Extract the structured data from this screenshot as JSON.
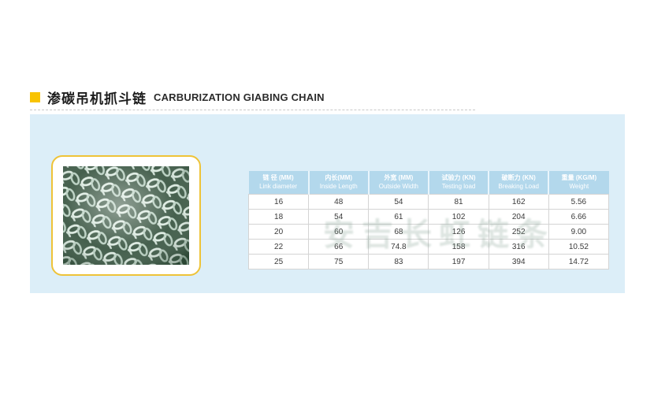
{
  "page": {
    "title_zh": "渗碳吊机抓斗链",
    "title_en": "CARBURIZATION GIABING CHAIN"
  },
  "watermark": "安吉长虹链条",
  "colors": {
    "accent_yellow": "#f8c301",
    "band_blue": "#dceef8",
    "table_header_blue": "#b3d8ec",
    "card_border_yellow": "#eec338"
  },
  "photo": {
    "alt": "pile of carburized steel chain links"
  },
  "table": {
    "columns": [
      {
        "zh": "链 径 (MM)",
        "en": "Link diameter"
      },
      {
        "zh": "内长(MM)",
        "en": "Inside Length"
      },
      {
        "zh": "外宽 (MM)",
        "en": "Outside Width"
      },
      {
        "zh": "试验力 (KN)",
        "en": "Testing load"
      },
      {
        "zh": "破断力 (KN)",
        "en": "Breaking Load"
      },
      {
        "zh": "重量 (KG/M)",
        "en": "Weight"
      }
    ],
    "rows": [
      [
        "16",
        "48",
        "54",
        "81",
        "162",
        "5.56"
      ],
      [
        "18",
        "54",
        "61",
        "102",
        "204",
        "6.66"
      ],
      [
        "20",
        "60",
        "68",
        "126",
        "252",
        "9.00"
      ],
      [
        "22",
        "66",
        "74.8",
        "158",
        "316",
        "10.52"
      ],
      [
        "25",
        "75",
        "83",
        "197",
        "394",
        "14.72"
      ]
    ]
  }
}
